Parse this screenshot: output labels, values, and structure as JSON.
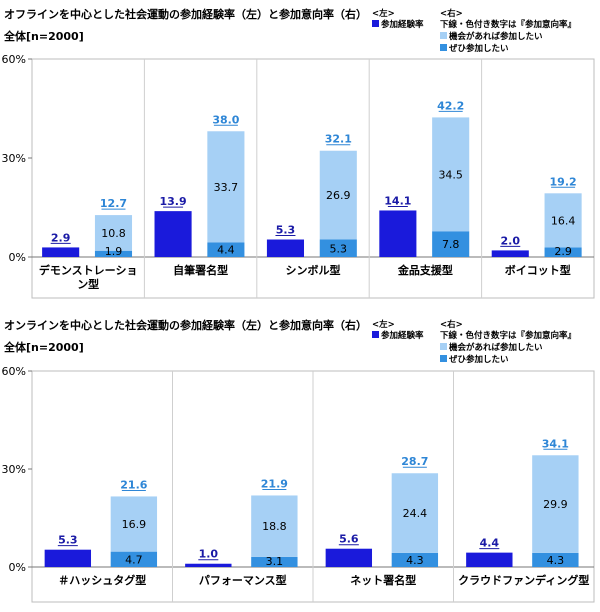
{
  "colors": {
    "experience": "#1a1adb",
    "willing": "#a6d0f5",
    "definitely": "#3390e0",
    "total_label": "#2e86d6",
    "exp_label": "#1a1aa6"
  },
  "chart_data": [
    {
      "type": "bar",
      "title": "オフラインを中心とした社会運動の参加経験率（左）と参加意向率（右）",
      "subtitle": "全体[n=2000]",
      "legend": {
        "left_header": "<左>",
        "right_header": "<右>",
        "experience": "参加経験率",
        "note": "下線・色付き数字は『参加意向率』",
        "willing": "機会があれば参加したい",
        "definitely": "ぜひ参加したい"
      },
      "yticks": [
        "60%",
        "30%",
        "0%"
      ],
      "ylim": [
        0,
        60
      ],
      "categories": [
        "デモンストレーション型",
        "自筆署名型",
        "シンボル型",
        "金品支援型",
        "ボイコット型"
      ],
      "series": [
        {
          "name": "参加経験率",
          "values": [
            2.9,
            13.9,
            5.3,
            14.1,
            2.0
          ]
        },
        {
          "name": "ぜひ参加したい",
          "values": [
            1.9,
            4.4,
            5.3,
            7.8,
            2.9
          ]
        },
        {
          "name": "機会があれば参加したい",
          "values": [
            10.8,
            33.7,
            26.9,
            34.5,
            16.4
          ]
        }
      ],
      "totals": [
        12.7,
        38.0,
        32.1,
        42.2,
        19.2
      ],
      "value_labels": {
        "experience": [
          "2.9",
          "13.9",
          "5.3",
          "14.1",
          "2.0"
        ],
        "definitely": [
          "1.9",
          "4.4",
          "5.3",
          "7.8",
          "2.9"
        ],
        "willing": [
          "10.8",
          "33.7",
          "26.9",
          "34.5",
          "16.4"
        ],
        "totals": [
          "12.7",
          "38.0",
          "32.1",
          "42.2",
          "19.2"
        ]
      }
    },
    {
      "type": "bar",
      "title": "オンラインを中心とした社会運動の参加経験率（左）と参加意向率（右）",
      "subtitle": "全体[n=2000]",
      "legend": {
        "left_header": "<左>",
        "right_header": "<右>",
        "experience": "参加経験率",
        "note": "下線・色付き数字は『参加意向率』",
        "willing": "機会があれば参加したい",
        "definitely": "ぜひ参加したい"
      },
      "yticks": [
        "60%",
        "30%",
        "0%"
      ],
      "ylim": [
        0,
        60
      ],
      "categories": [
        "＃ハッシュタグ型",
        "パフォーマンス型",
        "ネット署名型",
        "クラウドファンディング型"
      ],
      "series": [
        {
          "name": "参加経験率",
          "values": [
            5.3,
            1.0,
            5.6,
            4.4
          ]
        },
        {
          "name": "ぜひ参加したい",
          "values": [
            4.7,
            3.1,
            4.3,
            4.3
          ]
        },
        {
          "name": "機会があれば参加したい",
          "values": [
            16.9,
            18.8,
            24.4,
            29.9
          ]
        }
      ],
      "totals": [
        21.6,
        21.9,
        28.7,
        34.1
      ],
      "value_labels": {
        "experience": [
          "5.3",
          "1.0",
          "5.6",
          "4.4"
        ],
        "definitely": [
          "4.7",
          "3.1",
          "4.3",
          "4.3"
        ],
        "willing": [
          "16.9",
          "18.8",
          "24.4",
          "29.9"
        ],
        "totals": [
          "21.6",
          "21.9",
          "28.7",
          "34.1"
        ]
      }
    }
  ]
}
